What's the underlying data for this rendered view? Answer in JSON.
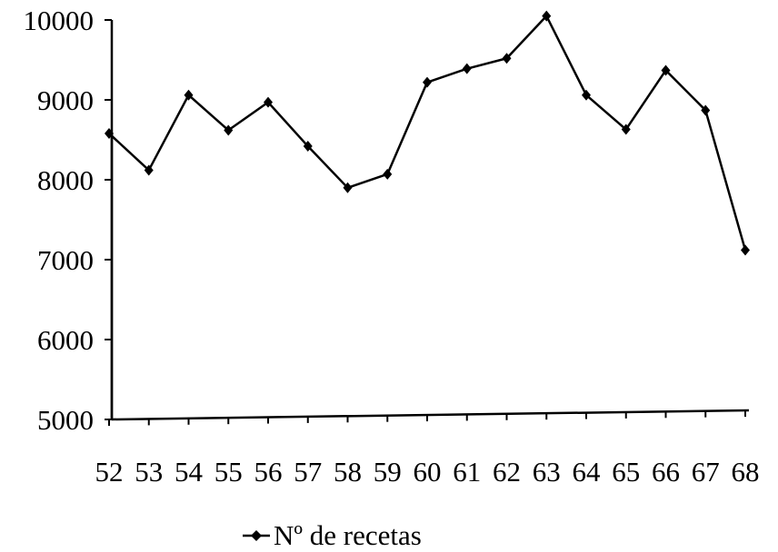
{
  "chart_data": {
    "type": "line",
    "title": "",
    "xlabel": "",
    "ylabel": "",
    "categories": [
      "52",
      "53",
      "54",
      "55",
      "56",
      "57",
      "58",
      "59",
      "60",
      "61",
      "62",
      "63",
      "64",
      "65",
      "66",
      "67",
      "68"
    ],
    "series": [
      {
        "name": "Nº de recetas",
        "values": [
          8580,
          8120,
          9060,
          8620,
          8970,
          8420,
          7900,
          8070,
          9220,
          9390,
          9520,
          10050,
          9060,
          8630,
          9370,
          8870,
          7120
        ],
        "color": "#000000",
        "marker": "diamond"
      }
    ],
    "ylim": [
      5000,
      10000
    ],
    "yticks": [
      5000,
      6000,
      7000,
      8000,
      9000,
      10000
    ],
    "ytick_labels": [
      "5000",
      "6000",
      "7000",
      "8000",
      "9000",
      "10000"
    ],
    "grid": false,
    "legend": {
      "position": "bottom-center",
      "entries": [
        "Nº de recetas"
      ]
    }
  }
}
